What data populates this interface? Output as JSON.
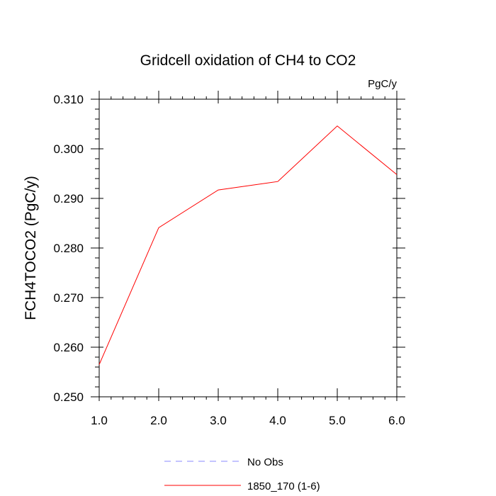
{
  "chart_data": {
    "type": "line",
    "title": "Gridcell oxidation of CH4 to CO2",
    "units": "PgC/y",
    "xlabel": "",
    "ylabel": "FCH4TOCO2  (PgC/y)",
    "xlim": [
      1.0,
      6.0
    ],
    "ylim": [
      0.25,
      0.31
    ],
    "xticks": [
      "1.0",
      "2.0",
      "3.0",
      "4.0",
      "5.0",
      "6.0"
    ],
    "yticks": [
      "0.250",
      "0.260",
      "0.270",
      "0.280",
      "0.290",
      "0.300",
      "0.310"
    ],
    "grid": false,
    "legend": {
      "position": "bottom",
      "entries": [
        {
          "label": "No Obs",
          "color": "#8a8aff",
          "dash": true
        },
        {
          "label": "1850_170 (1-6)",
          "color": "#ff0000",
          "dash": false
        }
      ]
    },
    "series": [
      {
        "name": "1850_170 (1-6)",
        "color": "#ff0000",
        "x": [
          1,
          2,
          3,
          4,
          5,
          6
        ],
        "values": [
          0.2565,
          0.2841,
          0.2917,
          0.2934,
          0.3046,
          0.2948
        ]
      }
    ]
  }
}
